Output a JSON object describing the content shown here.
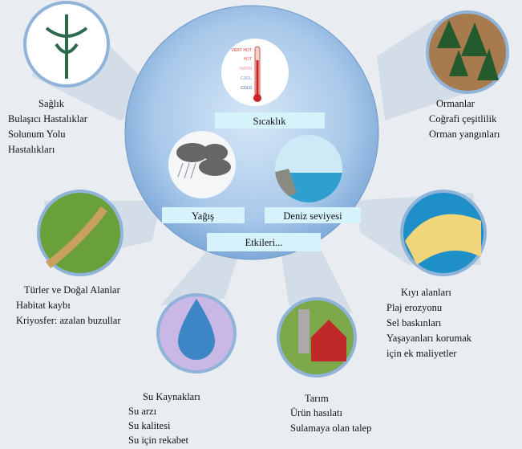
{
  "center": {
    "thermometer_labels": [
      "VERY HOT",
      "HOT",
      "WARM",
      "COOL",
      "COLD"
    ],
    "temperature": "Sıcaklık",
    "precipitation": "Yağış",
    "sea_level": "Deniz seviyesi",
    "effects": "Etkileri..."
  },
  "impacts": {
    "health": {
      "title": "Sağlık",
      "lines": [
        "Bulaşıcı Hastalıklar",
        "Solunum Yolu",
        "Hastalıkları"
      ]
    },
    "forests": {
      "title": "Ormanlar",
      "lines": [
        "Coğrafi çeşitlilik",
        "Orman yangınları"
      ]
    },
    "species": {
      "title": "Türler ve Doğal Alanlar",
      "lines": [
        "Habitat kaybı",
        "Kriyosfer: azalan buzullar"
      ]
    },
    "coastal": {
      "title": "Kıyı alanları",
      "lines": [
        "Plaj erozyonu",
        "Sel baskınları",
        "Yaşayanları korumak",
        "için ek maliyetler"
      ]
    },
    "water": {
      "title": "Su Kaynakları",
      "lines": [
        "Su arzı",
        "Su kalitesi",
        "Su için rekabet"
      ]
    },
    "agriculture": {
      "title": "Tarım",
      "lines": [
        "Ürün hasılatı",
        "Sulamaya olan talep"
      ]
    }
  }
}
